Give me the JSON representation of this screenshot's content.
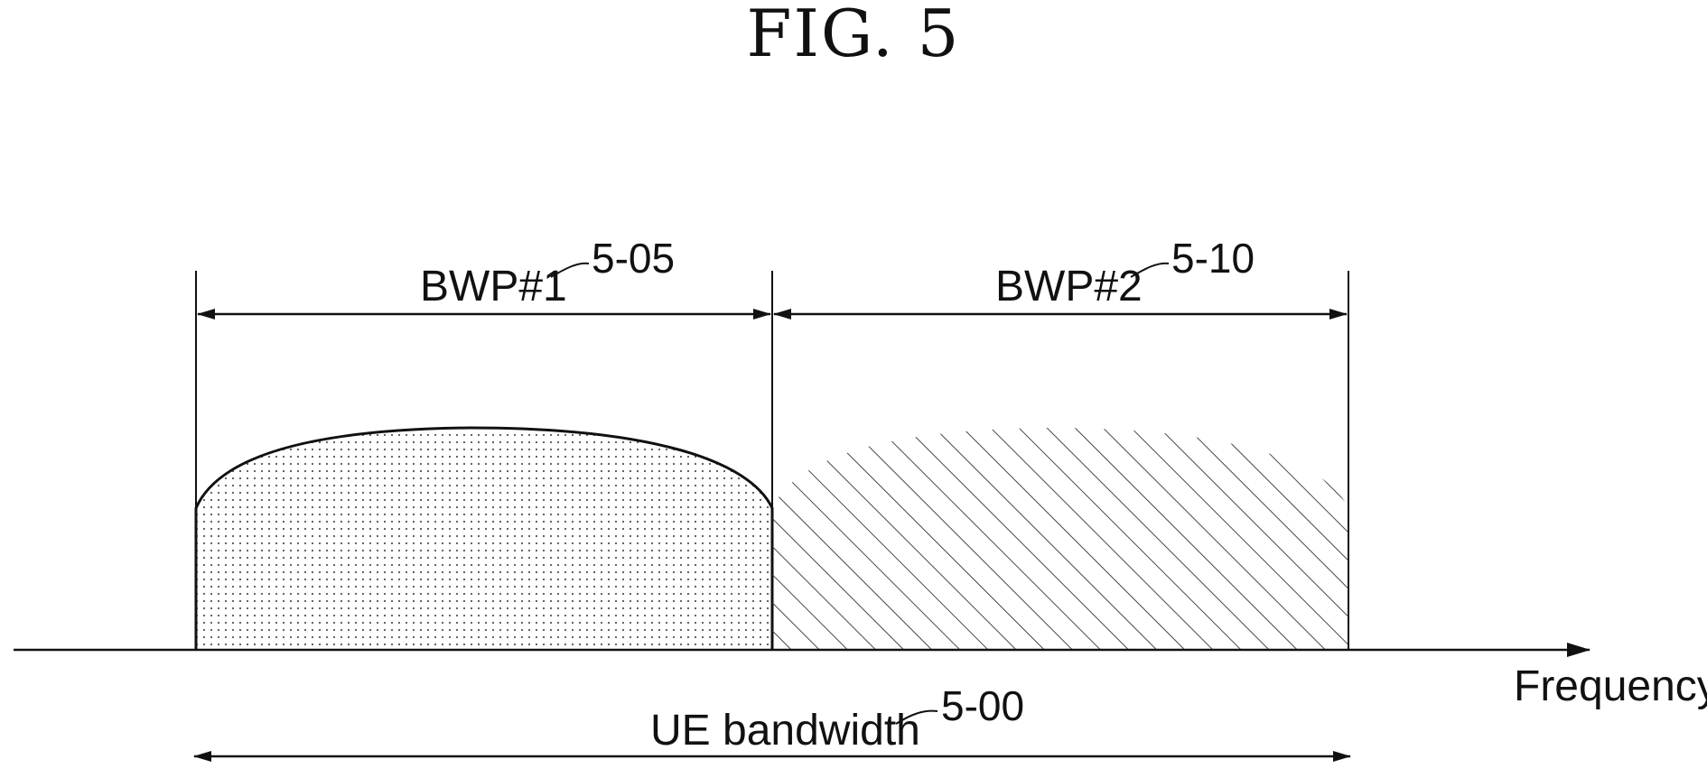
{
  "figure": {
    "title": "FIG. 5"
  },
  "labels": {
    "bwp1": "BWP#1",
    "bwp1_ref": "5-05",
    "bwp2": "BWP#2",
    "bwp2_ref": "5-10",
    "axis": "Frequency",
    "ue_bandwidth": "UE bandwidth",
    "ue_bandwidth_ref": "5-00"
  },
  "parts": {
    "bwp1_fill": "dotted",
    "bwp2_fill": "hatched"
  },
  "colors": {
    "ink": "#111111",
    "background": "#ffffff"
  }
}
